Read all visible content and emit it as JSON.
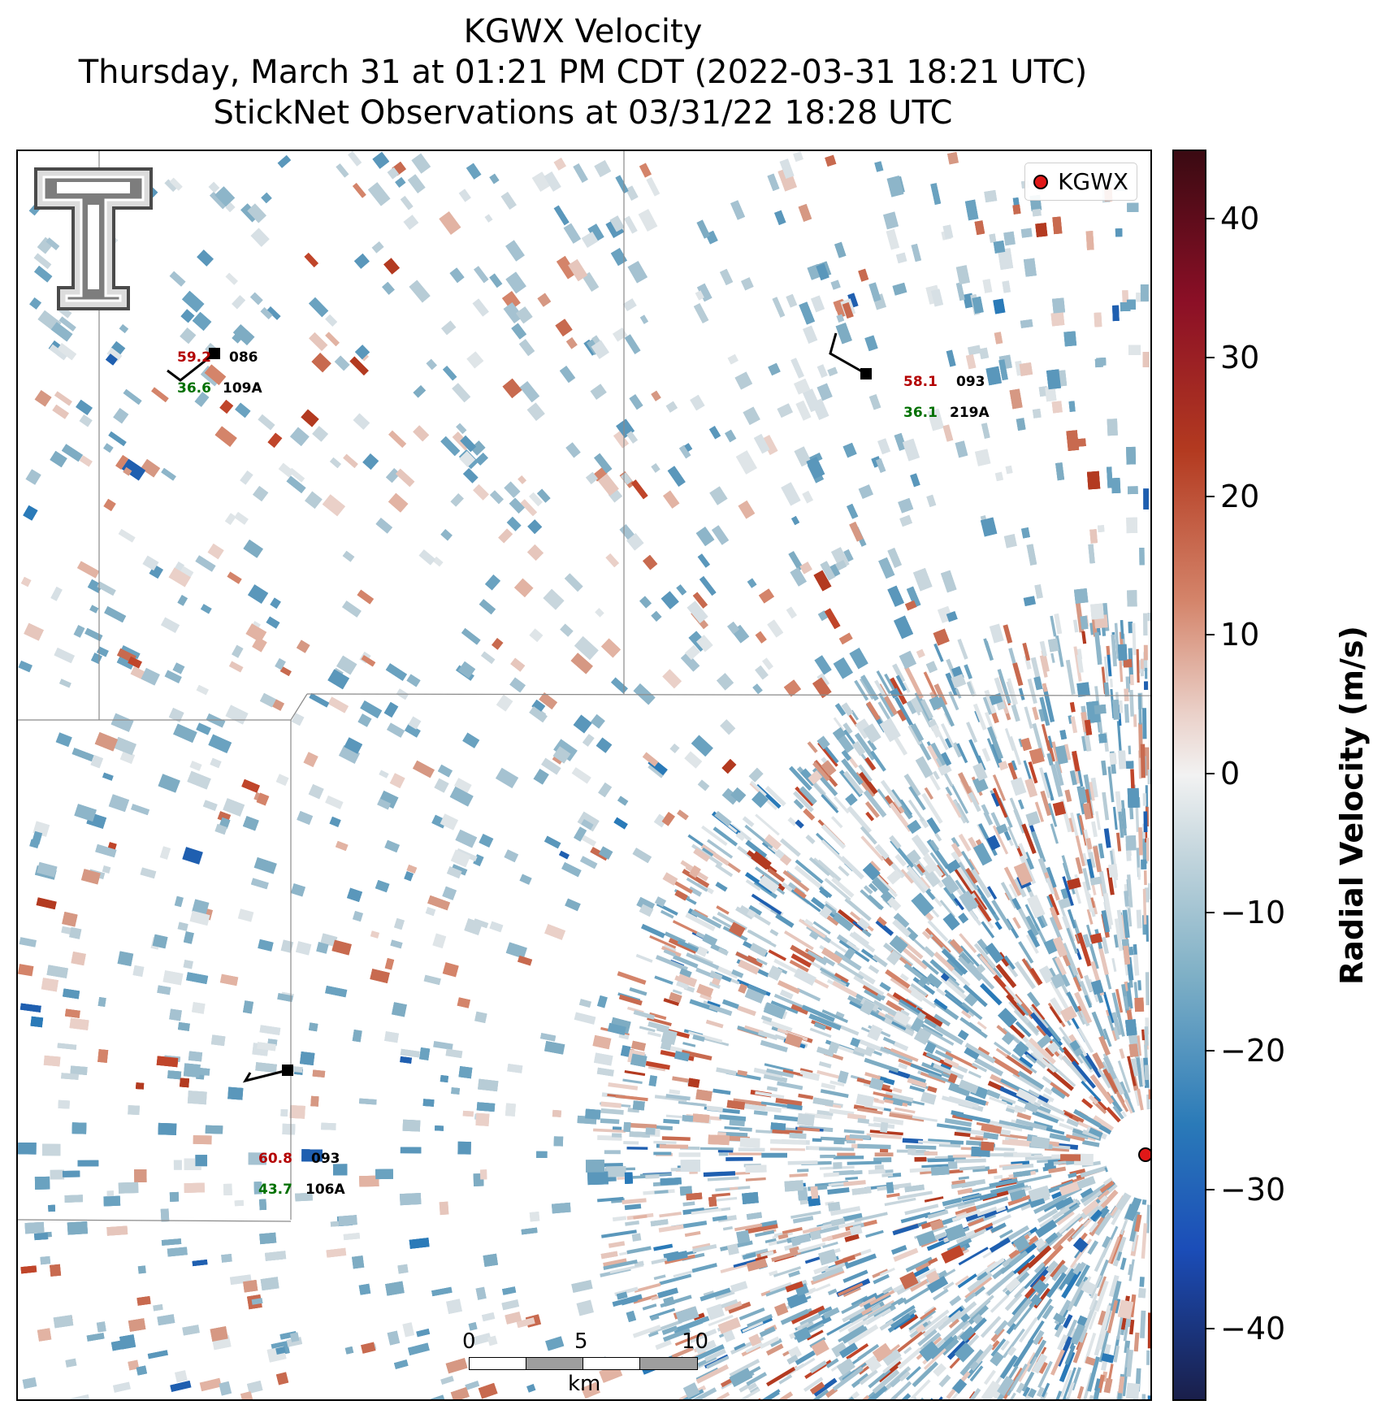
{
  "title": {
    "line1": "KGWX Velocity",
    "line2": "Thursday, March 31 at 01:21 PM CDT (2022-03-31 18:21 UTC)",
    "line3": "StickNet Observations at 03/31/22 18:28 UTC"
  },
  "legend": {
    "label": "KGWX"
  },
  "stations": [
    {
      "id": "109A",
      "temp": "59.2",
      "dew": "36.6",
      "pressure": "086"
    },
    {
      "id": "219A",
      "temp": "58.1",
      "dew": "36.1",
      "pressure": "093"
    },
    {
      "id": "106A",
      "temp": "60.8",
      "dew": "43.7",
      "pressure": "093"
    }
  ],
  "scalebar": {
    "ticks": [
      "0",
      "5",
      "10"
    ],
    "unit": "km"
  },
  "colorbar": {
    "title": "Radial Velocity (m/s)",
    "ticks": [
      "40",
      "30",
      "20",
      "10",
      "0",
      "−10",
      "−20",
      "−30",
      "−40"
    ],
    "min": -45,
    "max": 45
  },
  "colors": {
    "radar_site": "#e01818",
    "temp": "#b30000",
    "dew": "#007000"
  }
}
